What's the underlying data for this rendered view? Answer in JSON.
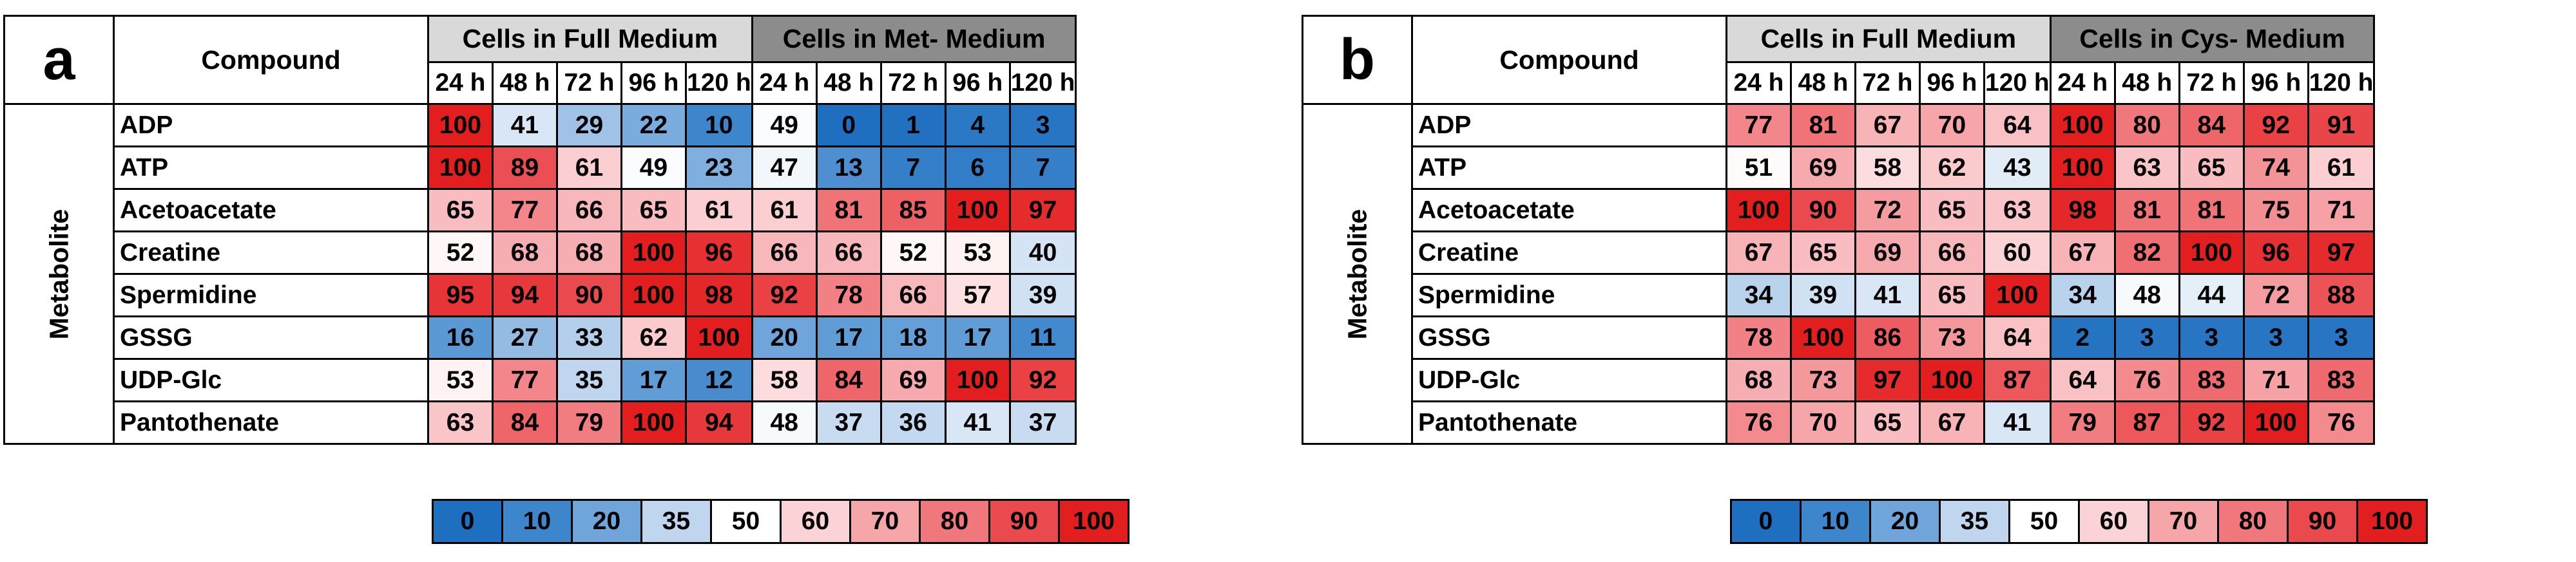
{
  "chart_data": [
    {
      "type": "heatmap",
      "panel_label": "a",
      "compound_header": "Compound",
      "row_group_label": "Metabolite",
      "column_groups": [
        {
          "label": "Cells in Full Medium",
          "times": [
            "24 h",
            "48 h",
            "72 h",
            "96 h",
            "120 h"
          ]
        },
        {
          "label": "Cells in Met- Medium",
          "times": [
            "24 h",
            "48 h",
            "72 h",
            "96 h",
            "120 h"
          ]
        }
      ],
      "rows": [
        {
          "label": "ADP",
          "values": [
            100,
            41,
            29,
            22,
            10,
            49,
            0,
            1,
            4,
            3
          ]
        },
        {
          "label": "ATP",
          "values": [
            100,
            89,
            61,
            49,
            23,
            47,
            13,
            7,
            6,
            7
          ]
        },
        {
          "label": "Acetoacetate",
          "values": [
            65,
            77,
            66,
            65,
            61,
            61,
            81,
            85,
            100,
            97
          ]
        },
        {
          "label": "Creatine",
          "values": [
            52,
            68,
            68,
            100,
            96,
            66,
            66,
            52,
            53,
            40
          ]
        },
        {
          "label": "Spermidine",
          "values": [
            95,
            94,
            90,
            100,
            98,
            92,
            78,
            66,
            57,
            39
          ]
        },
        {
          "label": "GSSG",
          "values": [
            16,
            27,
            33,
            62,
            100,
            20,
            17,
            18,
            17,
            11
          ]
        },
        {
          "label": "UDP-Glc",
          "values": [
            53,
            77,
            35,
            17,
            12,
            58,
            84,
            69,
            100,
            92
          ]
        },
        {
          "label": "Pantothenate",
          "values": [
            63,
            84,
            79,
            100,
            94,
            48,
            37,
            36,
            41,
            37
          ]
        }
      ],
      "legend": [
        {
          "label": "0",
          "color": "#1f6fc0"
        },
        {
          "label": "10",
          "color": "#3e86cb"
        },
        {
          "label": "20",
          "color": "#6fa5da"
        },
        {
          "label": "35",
          "color": "#bfd6ee"
        },
        {
          "label": "50",
          "color": "#ffffff"
        },
        {
          "label": "60",
          "color": "#fbd3d6"
        },
        {
          "label": "70",
          "color": "#f6a5a9"
        },
        {
          "label": "80",
          "color": "#f0787c"
        },
        {
          "label": "90",
          "color": "#ea4a4e"
        },
        {
          "label": "100",
          "color": "#e31e1e"
        }
      ]
    },
    {
      "type": "heatmap",
      "panel_label": "b",
      "compound_header": "Compound",
      "row_group_label": "Metabolite",
      "column_groups": [
        {
          "label": "Cells in Full Medium",
          "times": [
            "24 h",
            "48 h",
            "72 h",
            "96 h",
            "120 h"
          ]
        },
        {
          "label": "Cells in Cys- Medium",
          "times": [
            "24 h",
            "48 h",
            "72 h",
            "96 h",
            "120 h"
          ]
        }
      ],
      "rows": [
        {
          "label": "ADP",
          "values": [
            77,
            81,
            67,
            70,
            64,
            100,
            80,
            84,
            92,
            91
          ]
        },
        {
          "label": "ATP",
          "values": [
            51,
            69,
            58,
            62,
            43,
            100,
            63,
            65,
            74,
            61
          ]
        },
        {
          "label": "Acetoacetate",
          "values": [
            100,
            90,
            72,
            65,
            63,
            98,
            81,
            81,
            75,
            71
          ]
        },
        {
          "label": "Creatine",
          "values": [
            67,
            65,
            69,
            66,
            60,
            67,
            82,
            100,
            96,
            97
          ]
        },
        {
          "label": "Spermidine",
          "values": [
            34,
            39,
            41,
            65,
            100,
            34,
            48,
            44,
            72,
            88
          ]
        },
        {
          "label": "GSSG",
          "values": [
            78,
            100,
            86,
            73,
            64,
            2,
            3,
            3,
            3,
            3
          ]
        },
        {
          "label": "UDP-Glc",
          "values": [
            68,
            73,
            97,
            100,
            87,
            64,
            76,
            83,
            71,
            83
          ]
        },
        {
          "label": "Pantothenate",
          "values": [
            76,
            70,
            65,
            67,
            41,
            79,
            87,
            92,
            100,
            76
          ]
        }
      ],
      "legend": [
        {
          "label": "0",
          "color": "#1f6fc0"
        },
        {
          "label": "10",
          "color": "#3e86cb"
        },
        {
          "label": "20",
          "color": "#6fa5da"
        },
        {
          "label": "35",
          "color": "#bfd6ee"
        },
        {
          "label": "50",
          "color": "#ffffff"
        },
        {
          "label": "60",
          "color": "#fbd3d6"
        },
        {
          "label": "70",
          "color": "#f6a5a9"
        },
        {
          "label": "80",
          "color": "#f0787c"
        },
        {
          "label": "90",
          "color": "#ea4a4e"
        },
        {
          "label": "100",
          "color": "#e31e1e"
        }
      ]
    }
  ]
}
